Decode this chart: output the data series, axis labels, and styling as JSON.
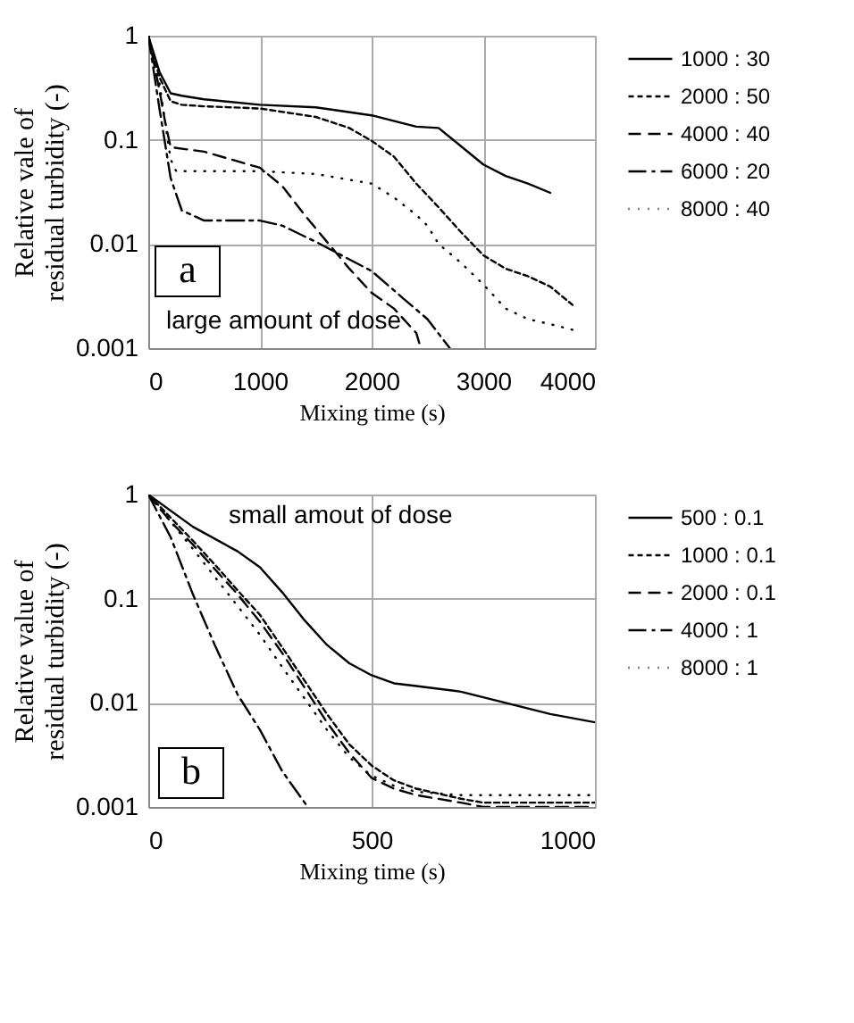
{
  "chart_data": [
    {
      "type": "line",
      "xlabel": "Mixing time (s)",
      "ylabel": "Relative vale of\nresidual turbidity (-)",
      "xlim": [
        0,
        4000
      ],
      "xticks": [
        0,
        1000,
        2000,
        3000,
        4000
      ],
      "ylim": [
        0.001,
        1
      ],
      "yticks": [
        0.001,
        0.01,
        0.1,
        1
      ],
      "log": true,
      "grid": true,
      "legend": "right",
      "annotations": [
        "a",
        "large amount of dose"
      ],
      "series": [
        {
          "name": "1000 : 30",
          "color": "#000000",
          "line_style": "solid",
          "x": [
            0,
            100,
            200,
            300,
            500,
            1000,
            1500,
            2000,
            2400,
            2600,
            2800,
            3000,
            3200,
            3400,
            3600
          ],
          "values": [
            1,
            0.45,
            0.28,
            0.265,
            0.245,
            0.217,
            0.205,
            0.172,
            0.134,
            0.13,
            0.087,
            0.058,
            0.045,
            0.038,
            0.031
          ]
        },
        {
          "name": "2000 : 50",
          "color": "#000000",
          "line_style": "dotted",
          "x": [
            0,
            100,
            200,
            300,
            500,
            1000,
            1500,
            1800,
            2000,
            2200,
            2400,
            2600,
            2800,
            3000,
            3200,
            3400,
            3600,
            3800
          ],
          "values": [
            1,
            0.4,
            0.235,
            0.217,
            0.21,
            0.2,
            0.166,
            0.13,
            0.098,
            0.069,
            0.038,
            0.0225,
            0.013,
            0.0078,
            0.0058,
            0.0049,
            0.0039,
            0.0026
          ]
        },
        {
          "name": "4000 : 40",
          "color": "#000000",
          "line_style": "dashed",
          "x": [
            0,
            100,
            150,
            200,
            500,
            1000,
            1200,
            1400,
            1600,
            1800,
            2000,
            2200,
            2400,
            2440
          ],
          "values": [
            1,
            0.3,
            0.15,
            0.085,
            0.077,
            0.054,
            0.036,
            0.019,
            0.0105,
            0.0058,
            0.0034,
            0.0024,
            0.0014,
            0.001
          ]
        },
        {
          "name": "6000 : 20",
          "color": "#000000",
          "line_style": "dashdot",
          "x": [
            0,
            100,
            200,
            300,
            500,
            1000,
            1200,
            1500,
            2000,
            2300,
            2500,
            2700
          ],
          "values": [
            1,
            0.2,
            0.043,
            0.021,
            0.0168,
            0.0168,
            0.015,
            0.0105,
            0.0055,
            0.0029,
            0.0019,
            0.001
          ]
        },
        {
          "name": "8000 : 40",
          "color": "#000000",
          "line_style": "dotted_heavy",
          "x": [
            0,
            100,
            150,
            200,
            250,
            500,
            1000,
            1500,
            2000,
            2200,
            2400,
            2500,
            2600,
            2800,
            3000,
            3200,
            3400,
            3600,
            3800
          ],
          "values": [
            1,
            0.35,
            0.15,
            0.065,
            0.05,
            0.05,
            0.05,
            0.047,
            0.038,
            0.028,
            0.019,
            0.015,
            0.01,
            0.0066,
            0.0041,
            0.0024,
            0.0019,
            0.0017,
            0.0015
          ]
        }
      ]
    },
    {
      "type": "line",
      "xlabel": "Mixing time (s)",
      "ylabel": "Relative value of\nresidual turbidity (-)",
      "xlim": [
        0,
        1000
      ],
      "xticks": [
        0,
        500,
        1000
      ],
      "ylim": [
        0.001,
        1
      ],
      "yticks": [
        0.001,
        0.01,
        0.1,
        1
      ],
      "log": true,
      "grid": true,
      "legend": "right",
      "annotations": [
        "b",
        "small amout of dose"
      ],
      "series": [
        {
          "name": "500 : 0.1",
          "color": "#000000",
          "line_style": "solid",
          "x": [
            0,
            100,
            200,
            250,
            300,
            350,
            400,
            450,
            500,
            550,
            600,
            700,
            800,
            900,
            1000
          ],
          "values": [
            1,
            0.49,
            0.285,
            0.2,
            0.115,
            0.062,
            0.036,
            0.024,
            0.0184,
            0.0154,
            0.0145,
            0.0128,
            0.01,
            0.0078,
            0.0065
          ]
        },
        {
          "name": "1000 : 0.1",
          "color": "#000000",
          "line_style": "dotted",
          "x": [
            0,
            50,
            100,
            150,
            200,
            250,
            300,
            350,
            400,
            450,
            500,
            550,
            600,
            700,
            750,
            1000
          ],
          "values": [
            1,
            0.6,
            0.36,
            0.21,
            0.12,
            0.07,
            0.034,
            0.0163,
            0.0078,
            0.004,
            0.0025,
            0.0018,
            0.0015,
            0.0012,
            0.0011,
            0.0011
          ]
        },
        {
          "name": "2000 : 0.1",
          "color": "#000000",
          "line_style": "dashed",
          "x": [
            0,
            50,
            100,
            150,
            200,
            250,
            300,
            350,
            400,
            450,
            500,
            550,
            600,
            700,
            750,
            1000
          ],
          "values": [
            1,
            0.55,
            0.33,
            0.19,
            0.11,
            0.06,
            0.03,
            0.014,
            0.0065,
            0.0033,
            0.0019,
            0.0015,
            0.0013,
            0.0011,
            0.001,
            0.001
          ]
        },
        {
          "name": "4000 : 1",
          "color": "#000000",
          "line_style": "dashdot",
          "x": [
            0,
            50,
            100,
            150,
            200,
            250,
            300,
            357
          ],
          "values": [
            1,
            0.39,
            0.11,
            0.035,
            0.012,
            0.0055,
            0.0022,
            0.001
          ]
        },
        {
          "name": "8000 : 1",
          "color": "#000000",
          "line_style": "dotted_heavy",
          "x": [
            0,
            50,
            100,
            150,
            200,
            250,
            300,
            350,
            400,
            450,
            500,
            550,
            600,
            700,
            1000
          ],
          "values": [
            1,
            0.55,
            0.3,
            0.16,
            0.085,
            0.045,
            0.022,
            0.011,
            0.0055,
            0.003,
            0.002,
            0.0016,
            0.0014,
            0.0013,
            0.0013
          ]
        }
      ]
    }
  ]
}
